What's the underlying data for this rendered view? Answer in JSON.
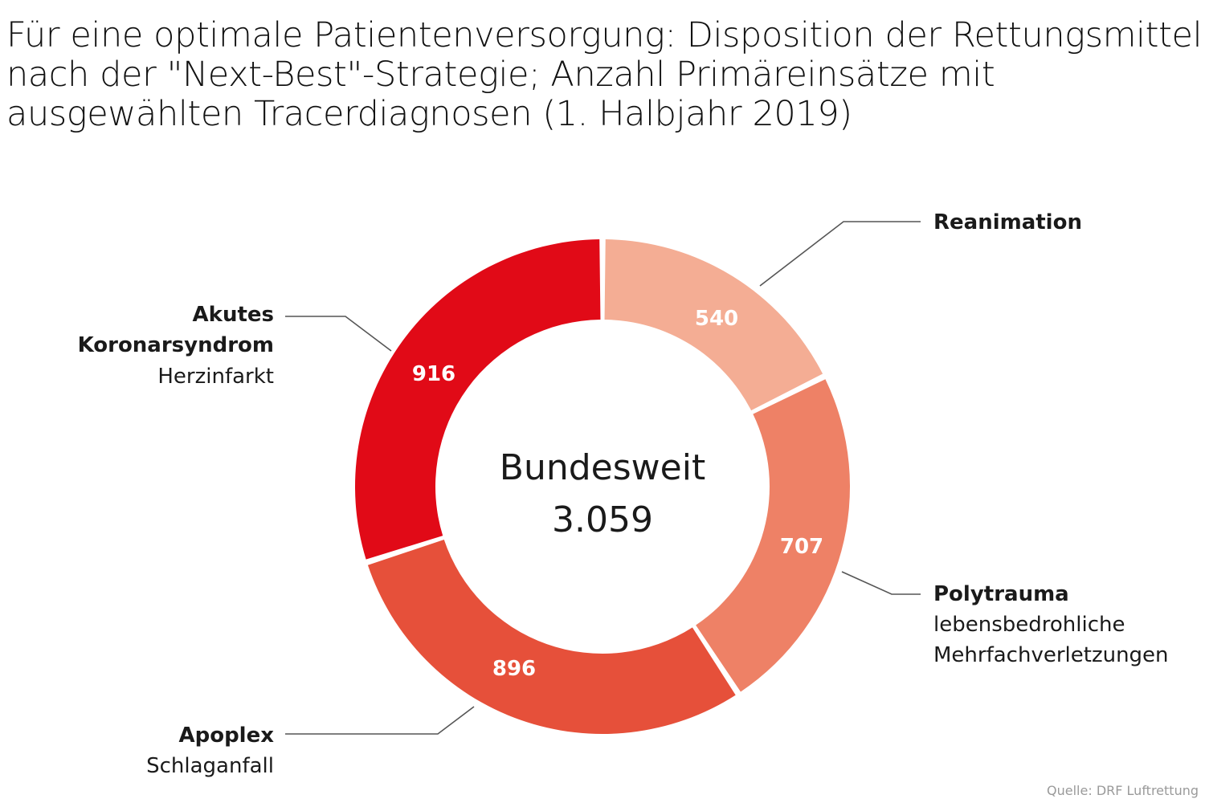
{
  "title_lines": [
    "Für eine optimale Patientenversorgung: Disposition der Rettungsmittel",
    "nach der \"Next-Best\"-Strategie; Anzahl Primäreinsätze mit",
    "ausgewählten Tracerdiagnosen (1. Halbjahr 2019)"
  ],
  "source": "Quelle: DRF Luftrettung",
  "chart_data": {
    "type": "pie",
    "variant": "donut",
    "center_label": "Bundesweit",
    "center_value": "3.059",
    "slices": [
      {
        "label": "Reanimation",
        "sublabel": [],
        "value": 540,
        "value_label": "540",
        "color": "#f4ad94"
      },
      {
        "label": "Polytrauma",
        "sublabel": [
          "lebensbedrohliche",
          "Mehrfachverletzungen"
        ],
        "value": 707,
        "value_label": "707",
        "color": "#ee8166"
      },
      {
        "label": "Apoplex",
        "sublabel": [
          "Schlaganfall"
        ],
        "value": 896,
        "value_label": "896",
        "color": "#e6503a"
      },
      {
        "label": "Akutes Koronarsyndrom",
        "label_lines": [
          "Akutes",
          "Koronarsyndrom"
        ],
        "sublabel": [
          "Herzinfarkt"
        ],
        "value": 916,
        "value_label": "916",
        "color": "#e10a17"
      }
    ]
  }
}
